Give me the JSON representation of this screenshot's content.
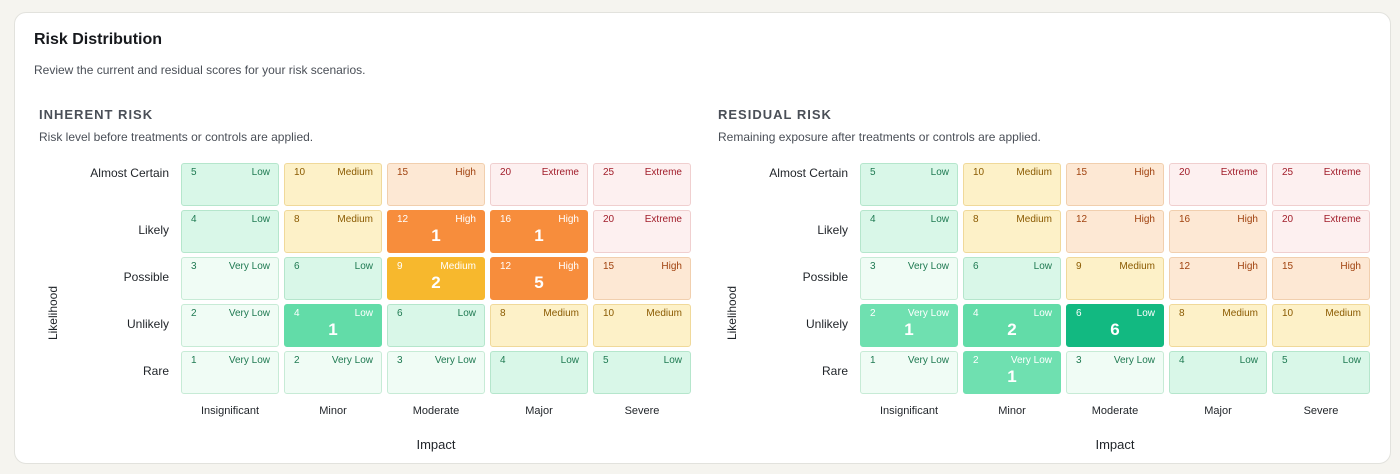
{
  "card": {
    "title": "Risk Distribution",
    "subtitle": "Review the current and residual scores for your risk scenarios."
  },
  "axes": {
    "likelihood_label": "Likelihood",
    "impact_label": "Impact",
    "likelihood_rows": [
      "Almost Certain",
      "Likely",
      "Possible",
      "Unlikely",
      "Rare"
    ],
    "impact_cols": [
      "Insignificant",
      "Minor",
      "Moderate",
      "Major",
      "Severe"
    ]
  },
  "colors": {
    "very_low": "#f0fcf5",
    "low": "#d9f7e8",
    "medium": "#fdf1c8",
    "high": "#fde8d4",
    "extreme": "#fdf0f0",
    "active_medium": "#f7b82d",
    "active_high": "#f78d3c",
    "active_low": "#62dca8",
    "active_low_strong": "#12b981"
  },
  "inherent": {
    "title": "INHERENT RISK",
    "subtitle": "Risk level before treatments or controls are applied.",
    "grid": [
      [
        {
          "score": "5",
          "level": "Low"
        },
        {
          "score": "10",
          "level": "Medium"
        },
        {
          "score": "15",
          "level": "High"
        },
        {
          "score": "20",
          "level": "Extreme"
        },
        {
          "score": "25",
          "level": "Extreme"
        }
      ],
      [
        {
          "score": "4",
          "level": "Low"
        },
        {
          "score": "8",
          "level": "Medium"
        },
        {
          "score": "12",
          "level": "High",
          "count": "1"
        },
        {
          "score": "16",
          "level": "High",
          "count": "1"
        },
        {
          "score": "20",
          "level": "Extreme"
        }
      ],
      [
        {
          "score": "3",
          "level": "Very Low"
        },
        {
          "score": "6",
          "level": "Low"
        },
        {
          "score": "9",
          "level": "Medium",
          "count": "2"
        },
        {
          "score": "12",
          "level": "High",
          "count": "5"
        },
        {
          "score": "15",
          "level": "High"
        }
      ],
      [
        {
          "score": "2",
          "level": "Very Low"
        },
        {
          "score": "4",
          "level": "Low",
          "count": "1"
        },
        {
          "score": "6",
          "level": "Low"
        },
        {
          "score": "8",
          "level": "Medium"
        },
        {
          "score": "10",
          "level": "Medium"
        }
      ],
      [
        {
          "score": "1",
          "level": "Very Low"
        },
        {
          "score": "2",
          "level": "Very Low"
        },
        {
          "score": "3",
          "level": "Very Low"
        },
        {
          "score": "4",
          "level": "Low"
        },
        {
          "score": "5",
          "level": "Low"
        }
      ]
    ]
  },
  "residual": {
    "title": "RESIDUAL RISK",
    "subtitle": "Remaining exposure after treatments or controls are applied.",
    "grid": [
      [
        {
          "score": "5",
          "level": "Low"
        },
        {
          "score": "10",
          "level": "Medium"
        },
        {
          "score": "15",
          "level": "High"
        },
        {
          "score": "20",
          "level": "Extreme"
        },
        {
          "score": "25",
          "level": "Extreme"
        }
      ],
      [
        {
          "score": "4",
          "level": "Low"
        },
        {
          "score": "8",
          "level": "Medium"
        },
        {
          "score": "12",
          "level": "High"
        },
        {
          "score": "16",
          "level": "High"
        },
        {
          "score": "20",
          "level": "Extreme"
        }
      ],
      [
        {
          "score": "3",
          "level": "Very Low"
        },
        {
          "score": "6",
          "level": "Low"
        },
        {
          "score": "9",
          "level": "Medium"
        },
        {
          "score": "12",
          "level": "High"
        },
        {
          "score": "15",
          "level": "High"
        }
      ],
      [
        {
          "score": "2",
          "level": "Very Low",
          "count": "1"
        },
        {
          "score": "4",
          "level": "Low",
          "count": "2"
        },
        {
          "score": "6",
          "level": "Low",
          "count": "6",
          "strong": true
        },
        {
          "score": "8",
          "level": "Medium"
        },
        {
          "score": "10",
          "level": "Medium"
        }
      ],
      [
        {
          "score": "1",
          "level": "Very Low"
        },
        {
          "score": "2",
          "level": "Very Low",
          "count": "1"
        },
        {
          "score": "3",
          "level": "Very Low"
        },
        {
          "score": "4",
          "level": "Low"
        },
        {
          "score": "5",
          "level": "Low"
        }
      ]
    ]
  }
}
